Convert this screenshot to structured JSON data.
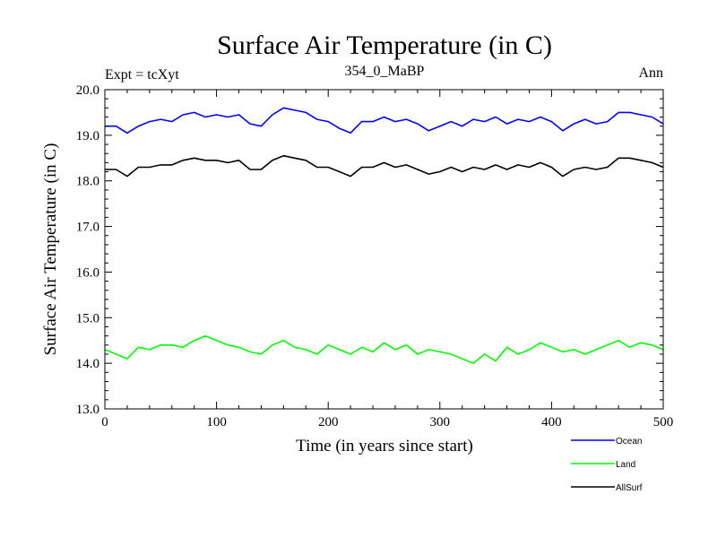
{
  "chart_data": {
    "type": "line",
    "title": "Surface Air Temperature (in C)",
    "subtitle": "354_0_MaBP",
    "left_label": "Expt = tcXyt",
    "right_label": "Ann",
    "xlabel": "Time (in years since start)",
    "ylabel": "Surface Air Temperature (in C)",
    "xlim": [
      0,
      500
    ],
    "ylim": [
      13.0,
      20.0
    ],
    "xticks": [
      "0",
      "100",
      "200",
      "300",
      "400",
      "500"
    ],
    "yticks": [
      "13.0",
      "14.0",
      "15.0",
      "16.0",
      "17.0",
      "18.0",
      "19.0",
      "20.0"
    ],
    "grid": false,
    "legend_position": "bottom-right",
    "x": [
      0,
      10,
      20,
      30,
      40,
      50,
      60,
      70,
      80,
      90,
      100,
      110,
      120,
      130,
      140,
      150,
      160,
      170,
      180,
      190,
      200,
      210,
      220,
      230,
      240,
      250,
      260,
      270,
      280,
      290,
      300,
      310,
      320,
      330,
      340,
      350,
      360,
      370,
      380,
      390,
      400,
      410,
      420,
      430,
      440,
      450,
      460,
      470,
      480,
      490,
      500
    ],
    "series": [
      {
        "name": "Ocean",
        "color": "#0000ff",
        "values": [
          19.2,
          19.2,
          19.05,
          19.2,
          19.3,
          19.35,
          19.3,
          19.45,
          19.5,
          19.4,
          19.45,
          19.4,
          19.45,
          19.25,
          19.2,
          19.45,
          19.6,
          19.55,
          19.5,
          19.35,
          19.3,
          19.15,
          19.05,
          19.3,
          19.3,
          19.4,
          19.3,
          19.35,
          19.25,
          19.1,
          19.2,
          19.3,
          19.2,
          19.35,
          19.3,
          19.4,
          19.25,
          19.35,
          19.3,
          19.4,
          19.3,
          19.1,
          19.25,
          19.35,
          19.25,
          19.3,
          19.5,
          19.5,
          19.45,
          19.4,
          19.25
        ]
      },
      {
        "name": "Land",
        "color": "#00ff00",
        "values": [
          14.3,
          14.2,
          14.1,
          14.35,
          14.3,
          14.4,
          14.4,
          14.35,
          14.5,
          14.6,
          14.5,
          14.4,
          14.35,
          14.25,
          14.2,
          14.4,
          14.5,
          14.35,
          14.3,
          14.2,
          14.4,
          14.3,
          14.2,
          14.35,
          14.25,
          14.45,
          14.3,
          14.4,
          14.2,
          14.3,
          14.25,
          14.2,
          14.1,
          14.0,
          14.2,
          14.05,
          14.35,
          14.2,
          14.3,
          14.45,
          14.35,
          14.25,
          14.3,
          14.2,
          14.3,
          14.4,
          14.5,
          14.35,
          14.45,
          14.4,
          14.3
        ]
      },
      {
        "name": "AllSurf",
        "color": "#000000",
        "values": [
          18.25,
          18.25,
          18.1,
          18.3,
          18.3,
          18.35,
          18.35,
          18.45,
          18.5,
          18.45,
          18.45,
          18.4,
          18.45,
          18.25,
          18.25,
          18.45,
          18.55,
          18.5,
          18.45,
          18.3,
          18.3,
          18.2,
          18.1,
          18.3,
          18.3,
          18.4,
          18.3,
          18.35,
          18.25,
          18.15,
          18.2,
          18.3,
          18.2,
          18.3,
          18.25,
          18.35,
          18.25,
          18.35,
          18.3,
          18.4,
          18.3,
          18.1,
          18.25,
          18.3,
          18.25,
          18.3,
          18.5,
          18.5,
          18.45,
          18.4,
          18.3
        ]
      }
    ]
  }
}
